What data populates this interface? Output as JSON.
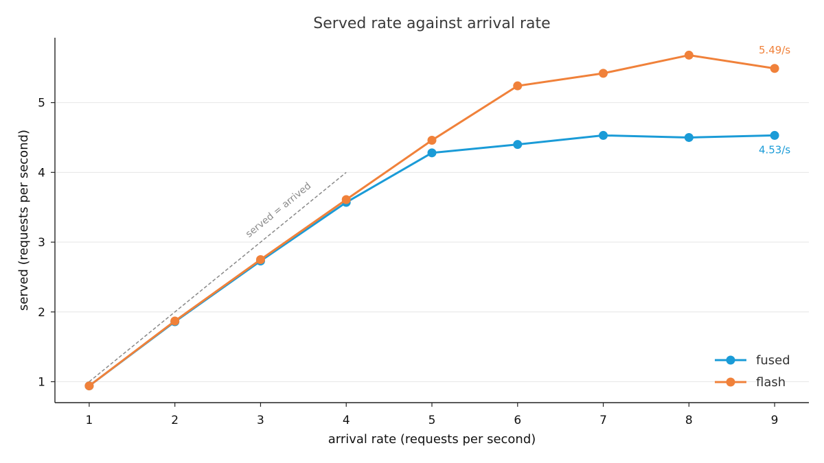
{
  "chart_data": {
    "type": "line",
    "title": "Served rate against arrival rate",
    "xlabel": "arrival rate (requests per second)",
    "ylabel": "served (requests per second)",
    "x": [
      1,
      2,
      3,
      4,
      5,
      6,
      7,
      8,
      9
    ],
    "xlim": [
      0.6,
      9.4
    ],
    "ylim": [
      0.7,
      5.93
    ],
    "xticks": [
      "1",
      "2",
      "3",
      "4",
      "5",
      "6",
      "7",
      "8",
      "9"
    ],
    "yticks": [
      "1",
      "2",
      "3",
      "4",
      "5"
    ],
    "grid": "horizontal",
    "legend_position": "bottom-right",
    "series": [
      {
        "name": "fused",
        "color": "#1a9bd7",
        "values": [
          0.94,
          1.86,
          2.73,
          3.57,
          4.28,
          4.4,
          4.53,
          4.5,
          4.53
        ],
        "end_label": "4.53/s"
      },
      {
        "name": "flash",
        "color": "#f0813a",
        "values": [
          0.94,
          1.87,
          2.75,
          3.61,
          4.46,
          5.24,
          5.42,
          5.68,
          5.49
        ],
        "end_label": "5.49/s"
      }
    ],
    "reference_line": {
      "label": "served = arrived",
      "x": [
        1,
        4
      ],
      "y": [
        1,
        4
      ],
      "color": "#888888"
    }
  }
}
